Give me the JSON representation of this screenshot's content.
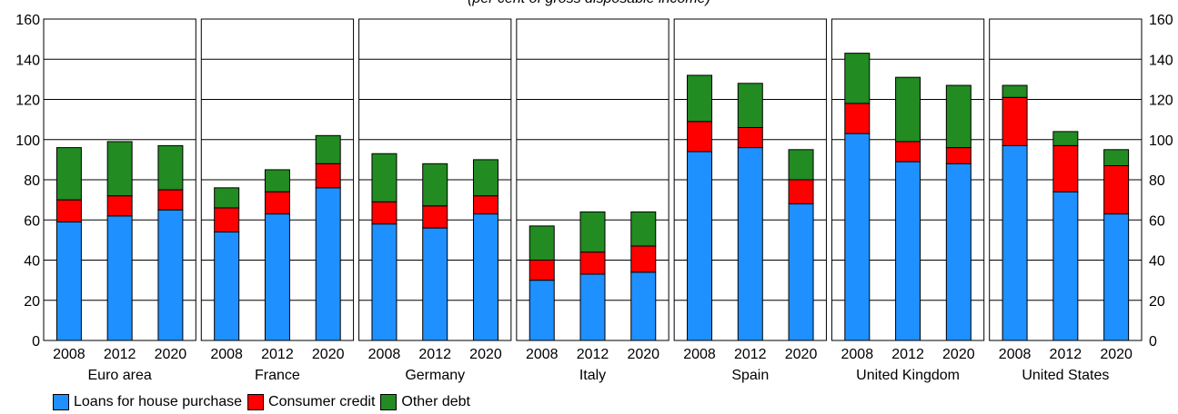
{
  "chart_data": {
    "type": "bar",
    "subtitle": "(per cent of gross disposable income)",
    "stacked": true,
    "ylim": [
      0,
      160
    ],
    "yticks": [
      0,
      20,
      40,
      60,
      80,
      100,
      120,
      140,
      160
    ],
    "y_axis_both_sides": true,
    "grid": true,
    "legend_position": "bottom-left",
    "series_meta": [
      {
        "name": "Loans for house purchase",
        "color": "#1e90ff"
      },
      {
        "name": "Consumer credit",
        "color": "#ff0000"
      },
      {
        "name": "Other debt",
        "color": "#228b22"
      }
    ],
    "groups": [
      {
        "name": "Euro area",
        "years": [
          "2008",
          "2012",
          "2020"
        ],
        "loans": [
          59,
          62,
          65
        ],
        "consumer": [
          11,
          10,
          10
        ],
        "other": [
          26,
          27,
          22
        ]
      },
      {
        "name": "France",
        "years": [
          "2008",
          "2012",
          "2020"
        ],
        "loans": [
          54,
          63,
          76
        ],
        "consumer": [
          12,
          11,
          12
        ],
        "other": [
          10,
          11,
          14
        ]
      },
      {
        "name": "Germany",
        "years": [
          "2008",
          "2012",
          "2020"
        ],
        "loans": [
          58,
          56,
          63
        ],
        "consumer": [
          11,
          11,
          9
        ],
        "other": [
          24,
          21,
          18
        ]
      },
      {
        "name": "Italy",
        "years": [
          "2008",
          "2012",
          "2020"
        ],
        "loans": [
          30,
          33,
          34
        ],
        "consumer": [
          10,
          11,
          13
        ],
        "other": [
          17,
          20,
          17
        ]
      },
      {
        "name": "Spain",
        "years": [
          "2008",
          "2012",
          "2020"
        ],
        "loans": [
          94,
          96,
          68
        ],
        "consumer": [
          15,
          10,
          12
        ],
        "other": [
          23,
          22,
          15
        ]
      },
      {
        "name": "United Kingdom",
        "years": [
          "2008",
          "2012",
          "2020"
        ],
        "loans": [
          103,
          89,
          88
        ],
        "consumer": [
          15,
          10,
          8
        ],
        "other": [
          25,
          32,
          31
        ]
      },
      {
        "name": "United States",
        "years": [
          "2008",
          "2012",
          "2020"
        ],
        "loans": [
          97,
          74,
          63
        ],
        "consumer": [
          24,
          23,
          24
        ],
        "other": [
          6,
          7,
          8
        ]
      }
    ]
  }
}
